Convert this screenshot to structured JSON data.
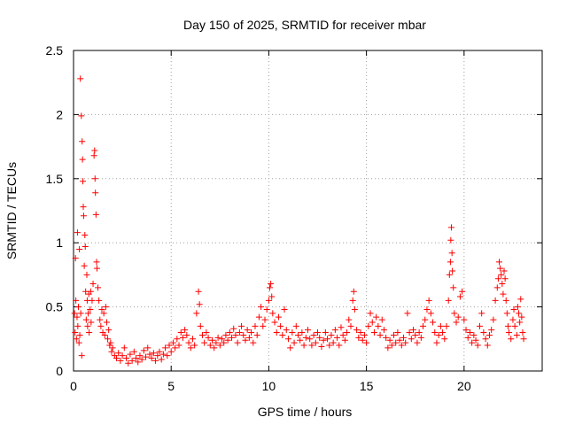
{
  "chart_data": {
    "type": "scatter",
    "title": "Day 150 of 2025, SRMTID for receiver mbar",
    "xlabel": "GPS time / hours",
    "ylabel": "SRMTID / TECUs",
    "xlim": [
      0,
      24
    ],
    "ylim": [
      0,
      2.5
    ],
    "xticks": [
      0,
      5,
      10,
      15,
      20
    ],
    "yticks": [
      0,
      0.5,
      1,
      1.5,
      2,
      2.5
    ],
    "ytick_labels": [
      "0",
      "0.5",
      "1",
      "1.5",
      "2",
      "2.5"
    ],
    "grid": true,
    "marker": "+",
    "series": [
      {
        "name": "SRMTID",
        "color": "#ff0000",
        "points": [
          [
            0.05,
            0.45
          ],
          [
            0.08,
            0.3
          ],
          [
            0.1,
            0.88
          ],
          [
            0.12,
            0.55
          ],
          [
            0.15,
            0.25
          ],
          [
            0.18,
            0.42
          ],
          [
            0.2,
            1.08
          ],
          [
            0.22,
            0.35
          ],
          [
            0.25,
            0.5
          ],
          [
            0.28,
            0.22
          ],
          [
            0.3,
            0.95
          ],
          [
            0.32,
            0.28
          ],
          [
            0.35,
            2.28
          ],
          [
            0.37,
            0.45
          ],
          [
            0.4,
            1.99
          ],
          [
            0.42,
            0.12
          ],
          [
            0.44,
            1.79
          ],
          [
            0.46,
            1.65
          ],
          [
            0.48,
            1.48
          ],
          [
            0.5,
            1.28
          ],
          [
            0.52,
            1.21
          ],
          [
            0.55,
            0.82
          ],
          [
            0.58,
            1.06
          ],
          [
            0.6,
            0.97
          ],
          [
            0.62,
            0.62
          ],
          [
            0.65,
            0.4
          ],
          [
            0.68,
            0.75
          ],
          [
            0.7,
            0.55
          ],
          [
            0.72,
            0.35
          ],
          [
            0.75,
            0.45
          ],
          [
            0.78,
            0.6
          ],
          [
            0.8,
            0.3
          ],
          [
            0.85,
            0.48
          ],
          [
            0.88,
            0.62
          ],
          [
            0.9,
            0.38
          ],
          [
            0.95,
            0.55
          ],
          [
            1.0,
            0.68
          ],
          [
            1.05,
            1.68
          ],
          [
            1.08,
            1.72
          ],
          [
            1.1,
            1.5
          ],
          [
            1.12,
            1.39
          ],
          [
            1.15,
            1.22
          ],
          [
            1.18,
            0.85
          ],
          [
            1.2,
            0.8
          ],
          [
            1.25,
            0.65
          ],
          [
            1.3,
            0.55
          ],
          [
            1.35,
            0.4
          ],
          [
            1.4,
            0.35
          ],
          [
            1.45,
            0.48
          ],
          [
            1.5,
            0.3
          ],
          [
            1.55,
            0.45
          ],
          [
            1.6,
            0.28
          ],
          [
            1.65,
            0.5
          ],
          [
            1.7,
            0.38
          ],
          [
            1.75,
            0.25
          ],
          [
            1.8,
            0.32
          ],
          [
            1.85,
            0.2
          ],
          [
            1.9,
            0.22
          ],
          [
            1.95,
            0.15
          ],
          [
            2.0,
            0.18
          ],
          [
            2.1,
            0.12
          ],
          [
            2.2,
            0.1
          ],
          [
            2.3,
            0.14
          ],
          [
            2.4,
            0.08
          ],
          [
            2.5,
            0.12
          ],
          [
            2.6,
            0.18
          ],
          [
            2.7,
            0.1
          ],
          [
            2.8,
            0.06
          ],
          [
            2.9,
            0.13
          ],
          [
            3.0,
            0.08
          ],
          [
            3.1,
            0.15
          ],
          [
            3.2,
            0.1
          ],
          [
            3.3,
            0.07
          ],
          [
            3.4,
            0.12
          ],
          [
            3.5,
            0.09
          ],
          [
            3.6,
            0.16
          ],
          [
            3.7,
            0.11
          ],
          [
            3.8,
            0.18
          ],
          [
            3.9,
            0.13
          ],
          [
            4.0,
            0.1
          ],
          [
            4.1,
            0.14
          ],
          [
            4.2,
            0.08
          ],
          [
            4.3,
            0.12
          ],
          [
            4.4,
            0.15
          ],
          [
            4.5,
            0.09
          ],
          [
            4.6,
            0.13
          ],
          [
            4.7,
            0.18
          ],
          [
            4.8,
            0.12
          ],
          [
            4.9,
            0.2
          ],
          [
            5.0,
            0.15
          ],
          [
            5.1,
            0.22
          ],
          [
            5.2,
            0.18
          ],
          [
            5.3,
            0.25
          ],
          [
            5.4,
            0.2
          ],
          [
            5.5,
            0.3
          ],
          [
            5.6,
            0.26
          ],
          [
            5.7,
            0.32
          ],
          [
            5.8,
            0.28
          ],
          [
            5.9,
            0.22
          ],
          [
            6.0,
            0.18
          ],
          [
            6.1,
            0.25
          ],
          [
            6.2,
            0.2
          ],
          [
            6.3,
            0.45
          ],
          [
            6.4,
            0.62
          ],
          [
            6.45,
            0.52
          ],
          [
            6.5,
            0.35
          ],
          [
            6.6,
            0.28
          ],
          [
            6.7,
            0.22
          ],
          [
            6.8,
            0.3
          ],
          [
            6.9,
            0.26
          ],
          [
            7.0,
            0.2
          ],
          [
            7.1,
            0.24
          ],
          [
            7.2,
            0.18
          ],
          [
            7.3,
            0.22
          ],
          [
            7.4,
            0.26
          ],
          [
            7.5,
            0.2
          ],
          [
            7.6,
            0.25
          ],
          [
            7.7,
            0.22
          ],
          [
            7.8,
            0.28
          ],
          [
            7.9,
            0.24
          ],
          [
            8.0,
            0.3
          ],
          [
            8.1,
            0.26
          ],
          [
            8.2,
            0.33
          ],
          [
            8.3,
            0.28
          ],
          [
            8.4,
            0.22
          ],
          [
            8.5,
            0.3
          ],
          [
            8.6,
            0.35
          ],
          [
            8.7,
            0.28
          ],
          [
            8.8,
            0.24
          ],
          [
            8.9,
            0.32
          ],
          [
            9.0,
            0.26
          ],
          [
            9.1,
            0.3
          ],
          [
            9.2,
            0.22
          ],
          [
            9.3,
            0.35
          ],
          [
            9.4,
            0.28
          ],
          [
            9.5,
            0.42
          ],
          [
            9.6,
            0.5
          ],
          [
            9.7,
            0.35
          ],
          [
            9.8,
            0.4
          ],
          [
            9.9,
            0.48
          ],
          [
            10.0,
            0.55
          ],
          [
            10.05,
            0.65
          ],
          [
            10.1,
            0.68
          ],
          [
            10.15,
            0.58
          ],
          [
            10.2,
            0.45
          ],
          [
            10.3,
            0.38
          ],
          [
            10.4,
            0.3
          ],
          [
            10.5,
            0.42
          ],
          [
            10.6,
            0.35
          ],
          [
            10.7,
            0.28
          ],
          [
            10.8,
            0.48
          ],
          [
            10.9,
            0.32
          ],
          [
            11.0,
            0.25
          ],
          [
            11.1,
            0.18
          ],
          [
            11.2,
            0.3
          ],
          [
            11.3,
            0.22
          ],
          [
            11.4,
            0.35
          ],
          [
            11.5,
            0.28
          ],
          [
            11.6,
            0.24
          ],
          [
            11.7,
            0.3
          ],
          [
            11.8,
            0.2
          ],
          [
            11.9,
            0.26
          ],
          [
            12.0,
            0.32
          ],
          [
            12.1,
            0.25
          ],
          [
            12.2,
            0.2
          ],
          [
            12.3,
            0.28
          ],
          [
            12.4,
            0.22
          ],
          [
            12.5,
            0.3
          ],
          [
            12.6,
            0.26
          ],
          [
            12.7,
            0.19
          ],
          [
            12.8,
            0.24
          ],
          [
            12.9,
            0.3
          ],
          [
            13.0,
            0.25
          ],
          [
            13.1,
            0.2
          ],
          [
            13.2,
            0.28
          ],
          [
            13.3,
            0.22
          ],
          [
            13.4,
            0.32
          ],
          [
            13.5,
            0.26
          ],
          [
            13.6,
            0.2
          ],
          [
            13.7,
            0.34
          ],
          [
            13.8,
            0.28
          ],
          [
            13.9,
            0.24
          ],
          [
            14.0,
            0.3
          ],
          [
            14.1,
            0.4
          ],
          [
            14.2,
            0.35
          ],
          [
            14.3,
            0.55
          ],
          [
            14.35,
            0.62
          ],
          [
            14.4,
            0.48
          ],
          [
            14.5,
            0.32
          ],
          [
            14.6,
            0.26
          ],
          [
            14.7,
            0.3
          ],
          [
            14.8,
            0.24
          ],
          [
            14.9,
            0.28
          ],
          [
            15.0,
            0.22
          ],
          [
            15.1,
            0.35
          ],
          [
            15.2,
            0.45
          ],
          [
            15.3,
            0.38
          ],
          [
            15.4,
            0.3
          ],
          [
            15.5,
            0.42
          ],
          [
            15.6,
            0.35
          ],
          [
            15.7,
            0.28
          ],
          [
            15.8,
            0.4
          ],
          [
            15.9,
            0.32
          ],
          [
            16.0,
            0.26
          ],
          [
            16.1,
            0.18
          ],
          [
            16.2,
            0.24
          ],
          [
            16.3,
            0.2
          ],
          [
            16.4,
            0.28
          ],
          [
            16.5,
            0.22
          ],
          [
            16.6,
            0.3
          ],
          [
            16.7,
            0.24
          ],
          [
            16.8,
            0.2
          ],
          [
            16.9,
            0.26
          ],
          [
            17.0,
            0.22
          ],
          [
            17.1,
            0.45
          ],
          [
            17.2,
            0.3
          ],
          [
            17.3,
            0.25
          ],
          [
            17.4,
            0.32
          ],
          [
            17.5,
            0.28
          ],
          [
            17.6,
            0.22
          ],
          [
            17.7,
            0.3
          ],
          [
            17.8,
            0.26
          ],
          [
            17.9,
            0.35
          ],
          [
            18.0,
            0.4
          ],
          [
            18.1,
            0.48
          ],
          [
            18.2,
            0.55
          ],
          [
            18.3,
            0.45
          ],
          [
            18.4,
            0.38
          ],
          [
            18.5,
            0.3
          ],
          [
            18.6,
            0.22
          ],
          [
            18.7,
            0.28
          ],
          [
            18.8,
            0.35
          ],
          [
            18.9,
            0.3
          ],
          [
            19.0,
            0.25
          ],
          [
            19.1,
            0.35
          ],
          [
            19.2,
            0.55
          ],
          [
            19.25,
            0.75
          ],
          [
            19.3,
            0.85
          ],
          [
            19.32,
            1.02
          ],
          [
            19.35,
            1.12
          ],
          [
            19.38,
            0.92
          ],
          [
            19.4,
            0.78
          ],
          [
            19.45,
            0.65
          ],
          [
            19.5,
            0.45
          ],
          [
            19.6,
            0.38
          ],
          [
            19.7,
            0.42
          ],
          [
            19.8,
            0.58
          ],
          [
            19.9,
            0.62
          ],
          [
            20.0,
            0.4
          ],
          [
            20.1,
            0.32
          ],
          [
            20.2,
            0.26
          ],
          [
            20.3,
            0.3
          ],
          [
            20.4,
            0.22
          ],
          [
            20.5,
            0.28
          ],
          [
            20.6,
            0.24
          ],
          [
            20.7,
            0.2
          ],
          [
            20.8,
            0.35
          ],
          [
            20.9,
            0.45
          ],
          [
            21.0,
            0.3
          ],
          [
            21.1,
            0.25
          ],
          [
            21.2,
            0.2
          ],
          [
            21.3,
            0.28
          ],
          [
            21.4,
            0.32
          ],
          [
            21.5,
            0.4
          ],
          [
            21.6,
            0.55
          ],
          [
            21.7,
            0.65
          ],
          [
            21.75,
            0.72
          ],
          [
            21.8,
            0.85
          ],
          [
            21.85,
            0.8
          ],
          [
            21.9,
            0.75
          ],
          [
            21.95,
            0.68
          ],
          [
            22.0,
            0.6
          ],
          [
            22.05,
            0.78
          ],
          [
            22.1,
            0.72
          ],
          [
            22.15,
            0.55
          ],
          [
            22.2,
            0.45
          ],
          [
            22.25,
            0.35
          ],
          [
            22.3,
            0.3
          ],
          [
            22.4,
            0.25
          ],
          [
            22.5,
            0.4
          ],
          [
            22.55,
            0.48
          ],
          [
            22.6,
            0.35
          ],
          [
            22.7,
            0.28
          ],
          [
            22.75,
            0.5
          ],
          [
            22.8,
            0.45
          ],
          [
            22.85,
            0.38
          ],
          [
            22.9,
            0.56
          ],
          [
            22.95,
            0.42
          ],
          [
            23.0,
            0.3
          ],
          [
            23.05,
            0.25
          ]
        ]
      }
    ]
  }
}
